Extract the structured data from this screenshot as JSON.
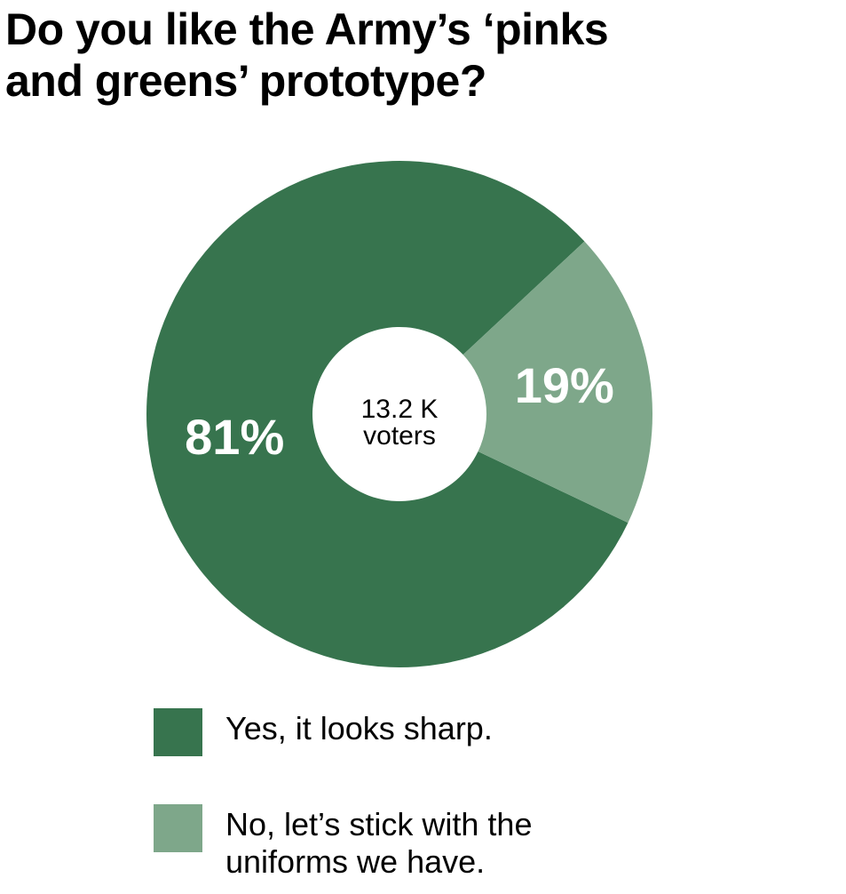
{
  "chart_data": {
    "type": "donut",
    "title": "Do you like the Army’s ‘pinks and greens’ prototype?",
    "categories": [
      "Yes, it looks sharp.",
      "No, let’s stick with the uniforms we have."
    ],
    "values": [
      81,
      19
    ],
    "value_labels": [
      "81%",
      "19%"
    ],
    "colors": [
      "#37744e",
      "#7ea78a"
    ],
    "center_text": [
      "13.2 K",
      "voters"
    ]
  }
}
